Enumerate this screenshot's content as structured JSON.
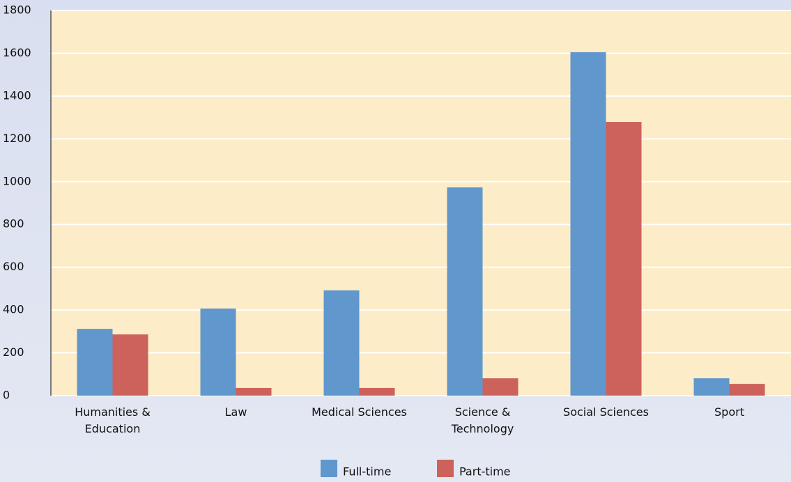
{
  "chart_data": {
    "type": "bar",
    "categories": [
      "Humanities & Education",
      "Law",
      "Medical Sciences",
      "Science & Technology",
      "Social Sciences",
      "Sport"
    ],
    "series": [
      {
        "name": "Full-time",
        "color": "#6097cc",
        "values": [
          312,
          407,
          492,
          973,
          1605,
          81
        ]
      },
      {
        "name": "Part-time",
        "color": "#cd625c",
        "values": [
          286,
          36,
          36,
          81,
          1279,
          55
        ]
      }
    ],
    "ylim": [
      0,
      1800
    ],
    "yticks": [
      0,
      200,
      400,
      600,
      800,
      1000,
      1200,
      1400,
      1600,
      1800
    ],
    "grid": true,
    "legend": "bottom"
  }
}
